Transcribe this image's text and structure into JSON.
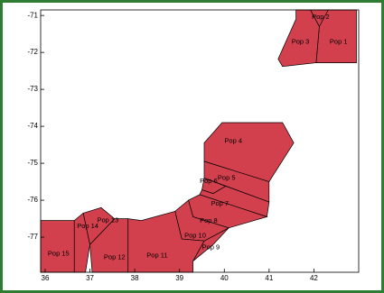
{
  "chart_data": {
    "type": "map",
    "title": "",
    "xlabel": "",
    "ylabel": "",
    "xlim": [
      35.9,
      43.0
    ],
    "ylim": [
      -77.95,
      -70.85
    ],
    "xticks": [
      36,
      37,
      38,
      39,
      40,
      41,
      42
    ],
    "yticks": [
      -71,
      -72,
      -73,
      -74,
      -75,
      -76,
      -77
    ],
    "grid": false,
    "fill_color": "#d2404e",
    "edge_color": "#000000",
    "regions": [
      {
        "name": "Pop 1",
        "label_pos": [
          42.55,
          -71.72
        ],
        "polygon": [
          [
            42.12,
            -70.85
          ],
          [
            42.95,
            -70.85
          ],
          [
            42.95,
            -72.28
          ],
          [
            42.05,
            -72.28
          ],
          [
            42.12,
            -71.3
          ]
        ]
      },
      {
        "name": "Pop 2",
        "label_pos": [
          42.15,
          -71.05
        ],
        "polygon": [
          [
            41.92,
            -70.85
          ],
          [
            42.32,
            -70.85
          ],
          [
            42.12,
            -71.3
          ]
        ]
      },
      {
        "name": "Pop 3",
        "label_pos": [
          41.7,
          -71.72
        ],
        "polygon": [
          [
            41.6,
            -70.85
          ],
          [
            41.92,
            -70.85
          ],
          [
            42.12,
            -71.3
          ],
          [
            42.05,
            -72.28
          ],
          [
            41.3,
            -72.38
          ],
          [
            41.2,
            -72.18
          ],
          [
            41.6,
            -71.1
          ]
        ]
      },
      {
        "name": "Pop 4",
        "label_pos": [
          40.2,
          -74.4
        ],
        "polygon": [
          [
            39.55,
            -74.45
          ],
          [
            39.95,
            -73.9
          ],
          [
            41.3,
            -73.9
          ],
          [
            41.55,
            -74.45
          ],
          [
            41.0,
            -75.5
          ],
          [
            39.55,
            -74.95
          ]
        ]
      },
      {
        "name": "Pop 5",
        "label_pos": [
          40.05,
          -75.4
        ],
        "polygon": [
          [
            39.55,
            -74.95
          ],
          [
            41.0,
            -75.5
          ],
          [
            41.0,
            -76.05
          ],
          [
            39.55,
            -75.4
          ]
        ]
      },
      {
        "name": "Pop 6",
        "label_pos": [
          39.65,
          -75.48
        ],
        "polygon": [
          [
            39.55,
            -75.4
          ],
          [
            40.03,
            -75.62
          ],
          [
            39.75,
            -75.82
          ],
          [
            39.5,
            -75.72
          ]
        ]
      },
      {
        "name": "Pop 7",
        "label_pos": [
          39.9,
          -76.1
        ],
        "polygon": [
          [
            39.5,
            -75.72
          ],
          [
            39.75,
            -75.82
          ],
          [
            40.03,
            -75.62
          ],
          [
            41.0,
            -76.05
          ],
          [
            40.95,
            -76.45
          ],
          [
            39.45,
            -75.85
          ]
        ]
      },
      {
        "name": "Pop 8",
        "label_pos": [
          39.65,
          -76.56
        ],
        "polygon": [
          [
            39.2,
            -76.0
          ],
          [
            39.45,
            -75.85
          ],
          [
            40.95,
            -76.45
          ],
          [
            40.1,
            -76.75
          ],
          [
            39.3,
            -76.45
          ]
        ]
      },
      {
        "name": "Pop 9",
        "label_pos": [
          39.7,
          -77.28
        ],
        "polygon": [
          [
            39.55,
            -77.1
          ],
          [
            40.1,
            -76.75
          ],
          [
            39.75,
            -77.2
          ],
          [
            39.3,
            -77.65
          ]
        ]
      },
      {
        "name": "Pop 10",
        "label_pos": [
          39.35,
          -76.96
        ],
        "polygon": [
          [
            38.9,
            -76.3
          ],
          [
            39.2,
            -76.0
          ],
          [
            39.3,
            -76.45
          ],
          [
            40.1,
            -76.75
          ],
          [
            39.55,
            -77.1
          ],
          [
            39.05,
            -77.05
          ]
        ]
      },
      {
        "name": "Pop 11",
        "label_pos": [
          38.5,
          -77.5
        ],
        "polygon": [
          [
            37.85,
            -76.5
          ],
          [
            38.15,
            -76.55
          ],
          [
            38.9,
            -76.3
          ],
          [
            39.05,
            -77.05
          ],
          [
            39.55,
            -77.1
          ],
          [
            39.3,
            -77.65
          ],
          [
            39.3,
            -77.95
          ],
          [
            37.85,
            -77.95
          ]
        ]
      },
      {
        "name": "Pop 12",
        "label_pos": [
          37.55,
          -77.55
        ],
        "polygon": [
          [
            37.0,
            -77.2
          ],
          [
            37.55,
            -76.5
          ],
          [
            37.85,
            -76.5
          ],
          [
            37.85,
            -77.95
          ],
          [
            37.05,
            -77.95
          ]
        ]
      },
      {
        "name": "Pop 13",
        "label_pos": [
          37.4,
          -76.55
        ],
        "polygon": [
          [
            36.85,
            -76.35
          ],
          [
            37.25,
            -76.2
          ],
          [
            37.55,
            -76.5
          ],
          [
            37.0,
            -77.2
          ]
        ]
      },
      {
        "name": "Pop 14",
        "label_pos": [
          36.95,
          -76.7
        ],
        "polygon": [
          [
            36.65,
            -76.55
          ],
          [
            36.85,
            -76.35
          ],
          [
            37.0,
            -77.2
          ],
          [
            36.9,
            -77.95
          ],
          [
            36.65,
            -77.95
          ]
        ]
      },
      {
        "name": "Pop 15",
        "label_pos": [
          36.3,
          -77.45
        ],
        "polygon": [
          [
            35.9,
            -76.55
          ],
          [
            36.65,
            -76.55
          ],
          [
            36.65,
            -77.95
          ],
          [
            35.9,
            -77.95
          ]
        ]
      }
    ]
  }
}
